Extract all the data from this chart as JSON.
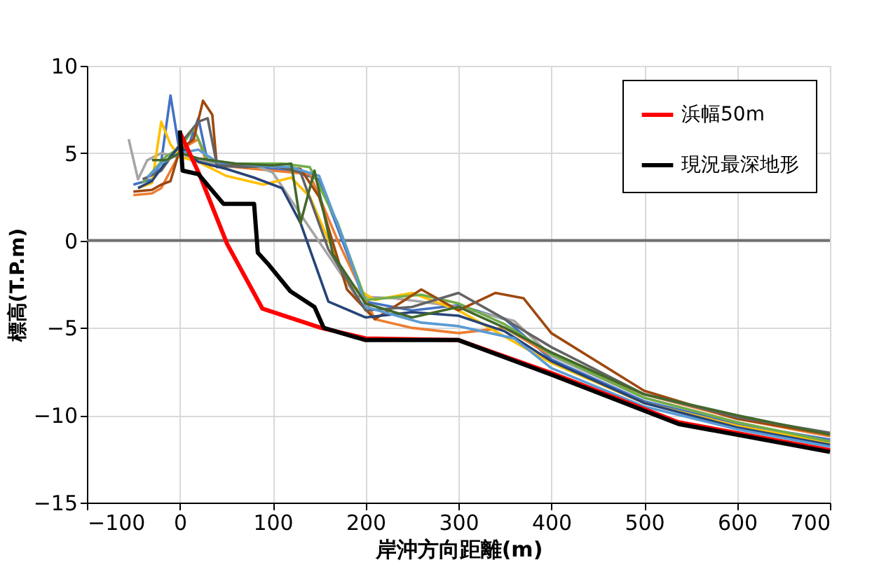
{
  "chart_data": {
    "type": "line",
    "xlabel": "岸沖方向距離(m)",
    "ylabel": "標高(T.P.m)",
    "xlim": [
      -100,
      700
    ],
    "xticks": [
      -100,
      0,
      100,
      200,
      300,
      400,
      500,
      600,
      700
    ],
    "ylim": [
      -15,
      10
    ],
    "yticks": [
      -15,
      -10,
      -5,
      0,
      5,
      10
    ],
    "grid": true,
    "legend": "top right",
    "marker": "none",
    "line_style": "solid",
    "ref_lines": [
      {
        "axis": "y",
        "value": 0,
        "color": "#707070"
      }
    ],
    "series": [
      {
        "color": "#4472c4",
        "x": [
          -50,
          -30,
          -20,
          -10,
          0,
          10,
          20,
          30,
          60,
          100,
          120,
          150,
          200,
          250,
          300,
          350,
          400,
          500,
          600,
          700
        ],
        "values": [
          3.2,
          3.5,
          4.5,
          8.3,
          5,
          5.5,
          7,
          4.5,
          4.3,
          4.1,
          4,
          3.5,
          -3.5,
          -4,
          -3.7,
          -4.5,
          -6.8,
          -9.2,
          -10.5,
          -11.4
        ]
      },
      {
        "color": "#ed7d31",
        "x": [
          -50,
          -30,
          -20,
          -10,
          0,
          10,
          20,
          30,
          60,
          100,
          140,
          170,
          210,
          250,
          300,
          350,
          400,
          500,
          600,
          700
        ],
        "values": [
          2.6,
          2.7,
          3,
          4,
          5,
          5.5,
          5.8,
          4.3,
          4.2,
          4,
          3.8,
          0,
          -4.5,
          -5,
          -5.3,
          -5,
          -6.6,
          -8.8,
          -10.2,
          -11.2
        ]
      },
      {
        "color": "#a5a5a5",
        "x": [
          -55,
          -45,
          -35,
          -20,
          -5,
          0,
          20,
          50,
          80,
          100,
          130,
          190,
          230,
          260,
          300,
          360,
          400,
          500,
          600,
          700
        ],
        "values": [
          5.8,
          3.5,
          4.6,
          5,
          4.8,
          4.8,
          4.6,
          4.2,
          4.3,
          3.9,
          1.5,
          -3.2,
          -3.3,
          -3.5,
          -3.8,
          -4.6,
          -6.6,
          -9,
          -10.4,
          -11.5
        ]
      },
      {
        "color": "#ffc000",
        "x": [
          -45,
          -30,
          -20,
          -10,
          0,
          20,
          50,
          90,
          120,
          140,
          180,
          210,
          250,
          300,
          350,
          400,
          500,
          600,
          700
        ],
        "values": [
          3,
          3.3,
          6.8,
          5.5,
          4.8,
          4.5,
          3.7,
          3.2,
          3.6,
          2.5,
          -2.4,
          -3.4,
          -3,
          -4,
          -5.5,
          -7,
          -9.3,
          -10.6,
          -11.6
        ]
      },
      {
        "color": "#70ad47",
        "x": [
          -40,
          -25,
          -15,
          0,
          15,
          30,
          60,
          90,
          110,
          140,
          170,
          200,
          260,
          300,
          350,
          400,
          500,
          600,
          700
        ],
        "values": [
          3.3,
          4.2,
          4.8,
          5.3,
          6.4,
          4.6,
          4.4,
          4.4,
          4.4,
          4.2,
          1,
          -3.4,
          -3.1,
          -3.6,
          -4.8,
          -6.5,
          -9,
          -10.4,
          -11.5
        ]
      },
      {
        "color": "#9e480e",
        "x": [
          -50,
          -30,
          -20,
          -10,
          0,
          15,
          25,
          35,
          40,
          60,
          90,
          130,
          150,
          180,
          210,
          260,
          300,
          340,
          370,
          400,
          500,
          600,
          700
        ],
        "values": [
          2.8,
          2.9,
          3.2,
          3.4,
          5.2,
          5.8,
          8,
          7.2,
          4.2,
          4.3,
          4.3,
          4.1,
          2.5,
          -2.8,
          -4.5,
          -2.8,
          -4,
          -3,
          -3.3,
          -5.3,
          -8.6,
          -10.2,
          -11.1
        ]
      },
      {
        "color": "#636363",
        "x": [
          -40,
          -20,
          0,
          20,
          30,
          40,
          70,
          100,
          130,
          160,
          200,
          250,
          300,
          350,
          400,
          500,
          600,
          700
        ],
        "values": [
          3.5,
          4,
          5.5,
          6.8,
          7,
          4.3,
          4.2,
          4.3,
          3.9,
          -0.5,
          -4,
          -3.8,
          -3,
          -4.5,
          -6.1,
          -8.8,
          -10.1,
          -11
        ]
      },
      {
        "color": "#264478",
        "x": [
          -45,
          -30,
          -15,
          0,
          20,
          50,
          80,
          110,
          130,
          160,
          200,
          250,
          300,
          350,
          400,
          500,
          600,
          700
        ],
        "values": [
          3,
          3.4,
          4.5,
          5.4,
          4.5,
          4.1,
          3.6,
          3,
          1,
          -3.5,
          -4.4,
          -4.1,
          -4.3,
          -5.2,
          -6.9,
          -9.3,
          -10.7,
          -11.7
        ]
      },
      {
        "color": "#5b9bd5",
        "x": [
          -35,
          -20,
          0,
          20,
          40,
          80,
          120,
          150,
          180,
          200,
          260,
          300,
          360,
          400,
          500,
          600,
          700
        ],
        "values": [
          3.6,
          4.4,
          5,
          5.2,
          4.5,
          4.3,
          4.2,
          3.7,
          -0.5,
          -3.8,
          -4.7,
          -4.9,
          -5.6,
          -7.3,
          -9.5,
          -10.8,
          -11.8
        ]
      },
      {
        "color": "#43682b",
        "x": [
          -30,
          -15,
          0,
          20,
          60,
          100,
          120,
          130,
          145,
          165,
          200,
          250,
          300,
          350,
          400,
          500,
          600,
          700
        ],
        "values": [
          4.6,
          4.6,
          5,
          4.7,
          4.4,
          4.3,
          4.4,
          1,
          4,
          -0.8,
          -3.6,
          -4.4,
          -3.8,
          -5,
          -6.4,
          -8.8,
          -10,
          -11.1
        ]
      },
      {
        "name": "浜幅50m",
        "color": "#ff0000",
        "x": [
          0,
          21,
          51,
          89,
          152,
          200,
          300,
          401,
          537,
          700
        ],
        "values": [
          6.2,
          3.8,
          -0.2,
          -3.9,
          -5.0,
          -5.6,
          -5.7,
          -7.6,
          -10.4,
          -12.0
        ]
      },
      {
        "name": "現況最深地形",
        "color": "#000000",
        "x": [
          0,
          3,
          20,
          47,
          80,
          84,
          96,
          119,
          145,
          155,
          200,
          300,
          401,
          537,
          700
        ],
        "values": [
          6.3,
          4.0,
          3.8,
          2.1,
          2.1,
          -0.7,
          -1.4,
          -2.9,
          -3.8,
          -5.0,
          -5.7,
          -5.7,
          -7.7,
          -10.5,
          -12.1
        ]
      }
    ]
  }
}
